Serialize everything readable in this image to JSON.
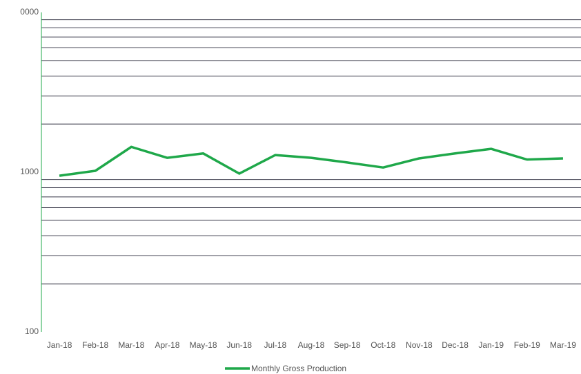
{
  "chart_data": {
    "type": "line",
    "categories": [
      "Jan-18",
      "Feb-18",
      "Mar-18",
      "Apr-18",
      "May-18",
      "Jun-18",
      "Jul-18",
      "Aug-18",
      "Sep-18",
      "Oct-18",
      "Nov-18",
      "Dec-18",
      "Jan-19",
      "Feb-19",
      "Mar-19"
    ],
    "series": [
      {
        "name": "Monthly Gross Production",
        "color": "#1fa84a",
        "values": [
          950,
          1020,
          1440,
          1230,
          1310,
          980,
          1280,
          1230,
          1150,
          1070,
          1220,
          1310,
          1400,
          1200,
          1220
        ]
      }
    ],
    "log_scale": true,
    "ylim": [
      100,
      10000
    ],
    "yticks": [
      {
        "value": 10000,
        "label": "0000"
      },
      1000,
      100
    ],
    "minor_gridlines": [
      200,
      300,
      400,
      500,
      600,
      700,
      800,
      900,
      2000,
      3000,
      4000,
      5000,
      6000,
      7000,
      8000,
      9000
    ],
    "grid": true,
    "legend": "bottom"
  }
}
